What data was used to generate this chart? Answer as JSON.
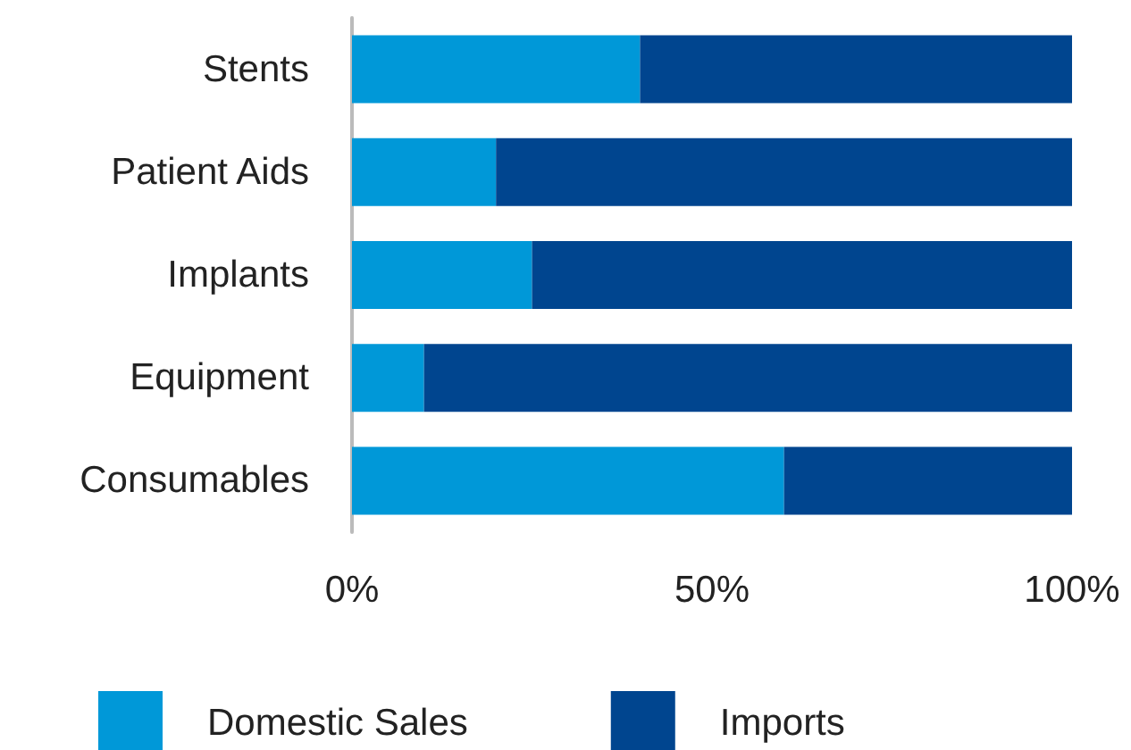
{
  "chart_data": {
    "type": "bar",
    "orientation": "horizontal",
    "stacked": true,
    "categories": [
      "Stents",
      "Patient Aids",
      "Implants",
      "Equipment",
      "Consumables"
    ],
    "series": [
      {
        "name": "Domestic Sales",
        "color": "#0098d8",
        "values": [
          40,
          20,
          25,
          10,
          60
        ]
      },
      {
        "name": "Imports",
        "color": "#00458f",
        "values": [
          60,
          80,
          75,
          90,
          40
        ]
      }
    ],
    "xlim": [
      0,
      100
    ],
    "xticks": [
      {
        "value": 0,
        "label": "0%"
      },
      {
        "value": 50,
        "label": "50%"
      },
      {
        "value": 100,
        "label": "100%"
      }
    ],
    "grid": false,
    "legend": "bottom"
  }
}
